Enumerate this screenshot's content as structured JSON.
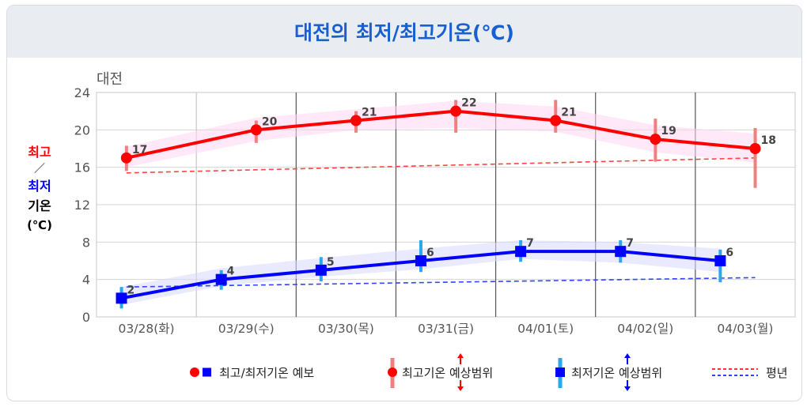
{
  "title": "대전의 최저/최고기온(℃)",
  "chart_data": {
    "type": "line",
    "subtitle": "대전",
    "ylabel": {
      "line1": "최고",
      "line2": "／",
      "line3": "최저",
      "line4": "기온",
      "line5": "(℃)"
    },
    "ylim": [
      0,
      24
    ],
    "yticks": [
      0,
      4,
      8,
      12,
      16,
      20,
      24
    ],
    "categories": [
      "03/28(화)",
      "03/29(수)",
      "03/30(목)",
      "03/31(금)",
      "04/01(토)",
      "04/02(일)",
      "04/03(월)"
    ],
    "grid": true,
    "series": [
      {
        "name": "최고기온",
        "color": "#ff0000",
        "x": [
          0.3,
          1.6,
          2.6,
          3.6,
          4.6,
          5.6,
          6.6
        ],
        "values": [
          17,
          20,
          21,
          22,
          21,
          19,
          18
        ],
        "range_low": [
          15.6,
          18.6,
          19.7,
          19.7,
          19.7,
          16.6,
          13.8
        ],
        "range_high": [
          18.3,
          21.0,
          22.0,
          23.2,
          23.2,
          21.2,
          20.2
        ],
        "band_low": [
          16.0,
          18.8,
          20.0,
          20.2,
          19.8,
          17.6,
          16.5
        ],
        "band_high": [
          18.2,
          21.3,
          22.2,
          23.1,
          22.5,
          20.5,
          19.6
        ]
      },
      {
        "name": "최저기온",
        "color": "#0000ff",
        "x": [
          0.25,
          1.25,
          2.25,
          3.25,
          4.25,
          5.25,
          6.25
        ],
        "values": [
          2,
          4,
          5,
          6,
          7,
          7,
          6
        ],
        "range_low": [
          0.9,
          2.9,
          3.8,
          4.8,
          5.9,
          5.8,
          3.7
        ],
        "range_high": [
          3.2,
          5.0,
          6.4,
          8.2,
          8.2,
          8.2,
          7.2
        ],
        "band_low": [
          1.3,
          3.3,
          4.3,
          5.1,
          6.2,
          5.8,
          4.8
        ],
        "band_high": [
          3.2,
          5.2,
          6.3,
          7.3,
          8.2,
          8.0,
          7.3
        ]
      }
    ],
    "normals": [
      {
        "name": "최고기온 평년",
        "color": "#ff4444",
        "x": [
          0.3,
          6.6
        ],
        "values": [
          15.4,
          17.0
        ]
      },
      {
        "name": "최저기온 평년",
        "color": "#3344ff",
        "x": [
          0.3,
          6.6
        ],
        "values": [
          3.2,
          4.2
        ]
      }
    ],
    "legend": {
      "placement": "bottom",
      "forecast": "최고/최저기온 예보",
      "max_range": "최고기온 예상범위",
      "min_range": "최저기온 예상범위",
      "normal": "평년"
    }
  }
}
